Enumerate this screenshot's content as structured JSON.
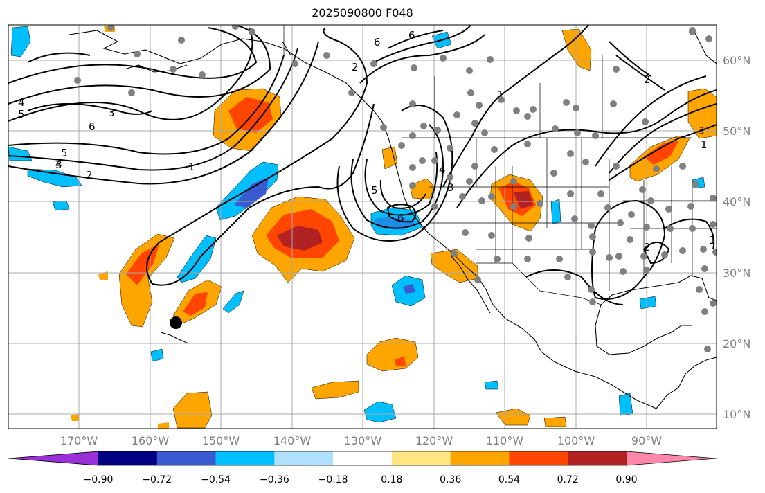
{
  "title": "2025090800 F048",
  "map": {
    "lat_labels": [
      "60°N",
      "50°N",
      "40°N",
      "30°N",
      "20°N",
      "10°N"
    ],
    "lon_labels": [
      "170°W",
      "160°W",
      "150°W",
      "140°W",
      "130°W",
      "120°W",
      "110°W",
      "100°W",
      "90°W"
    ],
    "contour_labels": [
      "4",
      "5",
      "6",
      "5",
      "4",
      "3",
      "2",
      "1",
      "2",
      "6",
      "1",
      "2",
      "3",
      "4",
      "5",
      "6",
      "3",
      "6",
      "1",
      "3",
      "1",
      "2"
    ]
  },
  "colorbar": {
    "colors": [
      "#9b30d9",
      "#000080",
      "#3a5bd0",
      "#00bfff",
      "#b0e0ff",
      "#ffffff",
      "#ffe680",
      "#ffa500",
      "#ff4500",
      "#b22222",
      "#ff88aa"
    ],
    "labels": [
      "−0.90",
      "−0.72",
      "−0.54",
      "−0.36",
      "−0.18",
      "0.18",
      "0.36",
      "0.54",
      "0.72",
      "0.90"
    ]
  },
  "station_marker": "black-dot"
}
